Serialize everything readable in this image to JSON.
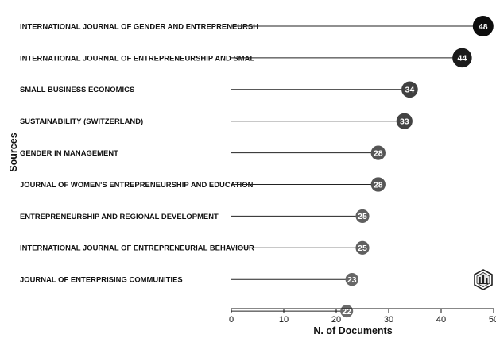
{
  "chart_data": {
    "type": "lollipop",
    "xlabel": "N. of Documents",
    "ylabel": "Sources",
    "xlim": [
      0,
      50
    ],
    "xticks": [
      0,
      10,
      20,
      30,
      40,
      50
    ],
    "grid": false,
    "categories": [
      "INTERNATIONAL JOURNAL OF GENDER AND ENTREPRENEURSH",
      "INTERNATIONAL JOURNAL OF ENTREPRENEURSHIP AND SMAL",
      "SMALL BUSINESS ECONOMICS",
      "SUSTAINABILITY (SWITZERLAND)",
      "GENDER IN MANAGEMENT",
      "JOURNAL OF WOMEN'S ENTREPRENEURSHIP AND EDUCATION",
      "ENTREPRENEURSHIP AND REGIONAL DEVELOPMENT",
      "INTERNATIONAL JOURNAL OF ENTREPRENEURIAL BEHAVIOUR",
      "JOURNAL OF ENTERPRISING COMMUNITIES",
      ""
    ],
    "values": [
      48,
      44,
      34,
      33,
      28,
      28,
      25,
      25,
      23,
      22
    ],
    "colors": {
      "high": "#0d0d0d",
      "low": "#6b6b6b",
      "stem": "#222222",
      "text_on_marker": "#ffffff"
    }
  },
  "watermark": {
    "icon": "library-logo-icon"
  }
}
